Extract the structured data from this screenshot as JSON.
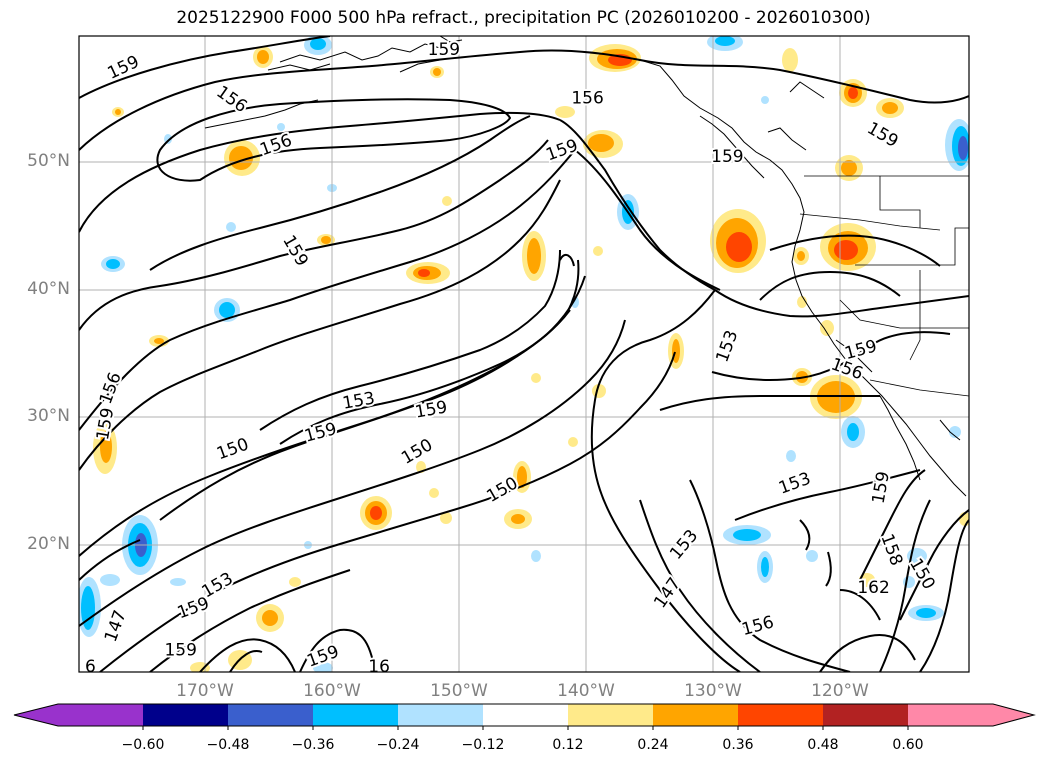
{
  "title": "2025122900 F000 500 hPa refract., precipitation PC (2026010200 - 2026010300)",
  "map": {
    "lat_labels": [
      "50°N",
      "40°N",
      "30°N",
      "20°N"
    ],
    "lon_labels": [
      "170°W",
      "160°W",
      "150°W",
      "140°W",
      "130°W",
      "120°W"
    ],
    "contour_labels": [
      {
        "text": "159",
        "lon": -176.5,
        "lat": 57.5,
        "rot": -25
      },
      {
        "text": "159",
        "lon": -151.3,
        "lat": 58.9,
        "rot": 0
      },
      {
        "text": "156",
        "lon": -168.0,
        "lat": 55.0,
        "rot": 35
      },
      {
        "text": "156",
        "lon": -140.0,
        "lat": 55.1,
        "rot": 0
      },
      {
        "text": "156",
        "lon": -164.5,
        "lat": 51.4,
        "rot": -20
      },
      {
        "text": "159",
        "lon": -142.0,
        "lat": 51.0,
        "rot": -20
      },
      {
        "text": "159",
        "lon": -129.0,
        "lat": 50.5,
        "rot": 0
      },
      {
        "text": "159",
        "lon": -116.8,
        "lat": 52.2,
        "rot": 30
      },
      {
        "text": "159",
        "lon": -163.0,
        "lat": 43.1,
        "rot": 60
      },
      {
        "text": "153",
        "lon": -129.0,
        "lat": 35.6,
        "rot": -70
      },
      {
        "text": "159",
        "lon": -118.5,
        "lat": 35.3,
        "rot": -15
      },
      {
        "text": "156",
        "lon": -119.6,
        "lat": 33.8,
        "rot": 20
      },
      {
        "text": "156",
        "lon": -177.5,
        "lat": 32.3,
        "rot": -70
      },
      {
        "text": "159",
        "lon": -177.9,
        "lat": 29.5,
        "rot": -80
      },
      {
        "text": "153",
        "lon": -158.0,
        "lat": 31.3,
        "rot": -10
      },
      {
        "text": "159",
        "lon": -152.3,
        "lat": 30.6,
        "rot": -10
      },
      {
        "text": "159",
        "lon": -161.0,
        "lat": 28.8,
        "rot": -15
      },
      {
        "text": "150",
        "lon": -167.9,
        "lat": 27.5,
        "rot": -20
      },
      {
        "text": "150",
        "lon": -153.4,
        "lat": 27.3,
        "rot": -30
      },
      {
        "text": "150",
        "lon": -146.7,
        "lat": 24.3,
        "rot": -30
      },
      {
        "text": "153",
        "lon": -123.7,
        "lat": 24.8,
        "rot": -20
      },
      {
        "text": "159",
        "lon": -116.9,
        "lat": 24.5,
        "rot": -80
      },
      {
        "text": "153",
        "lon": -132.4,
        "lat": 20.0,
        "rot": -50
      },
      {
        "text": "158",
        "lon": -116.1,
        "lat": 19.6,
        "rot": 70
      },
      {
        "text": "150",
        "lon": -113.7,
        "lat": 17.7,
        "rot": 60
      },
      {
        "text": "162",
        "lon": -117.5,
        "lat": 16.6,
        "rot": 0
      },
      {
        "text": "153",
        "lon": -169.1,
        "lat": 16.8,
        "rot": -30
      },
      {
        "text": "147",
        "lon": -133.7,
        "lat": 16.2,
        "rot": -55
      },
      {
        "text": "159",
        "lon": -171.0,
        "lat": 15.0,
        "rot": -20
      },
      {
        "text": "147",
        "lon": -177.1,
        "lat": 13.6,
        "rot": -70
      },
      {
        "text": "156",
        "lon": -126.6,
        "lat": 13.6,
        "rot": -15
      },
      {
        "text": "159",
        "lon": -172.0,
        "lat": 11.7,
        "rot": 0
      },
      {
        "text": "159",
        "lon": -160.8,
        "lat": 11.2,
        "rot": -20
      },
      {
        "text": "16",
        "lon": -156.4,
        "lat": 10.4,
        "rot": 0
      },
      {
        "text": "6",
        "lon": -179.1,
        "lat": 10.4,
        "rot": 0
      }
    ],
    "colors": {
      "contour": "#000000",
      "grid": "#b0b0b0",
      "yellow": "#ffea8a",
      "orange": "#ffa500",
      "red": "#ff4500",
      "lightblue": "#a6e1ff",
      "blue": "#00bfff",
      "deepblue": "#3a5fcd"
    }
  },
  "colorbar": {
    "ticks": [
      "−0.60",
      "−0.48",
      "−0.36",
      "−0.24",
      "−0.12",
      "0.12",
      "0.24",
      "0.36",
      "0.48",
      "0.60"
    ],
    "colors": [
      "#9932cc",
      "#00008b",
      "#3a5fcd",
      "#00bfff",
      "#b0e2ff",
      "#ffffff",
      "#ffea8a",
      "#ffa500",
      "#ff4500",
      "#b22222",
      "#ff88a8"
    ]
  }
}
